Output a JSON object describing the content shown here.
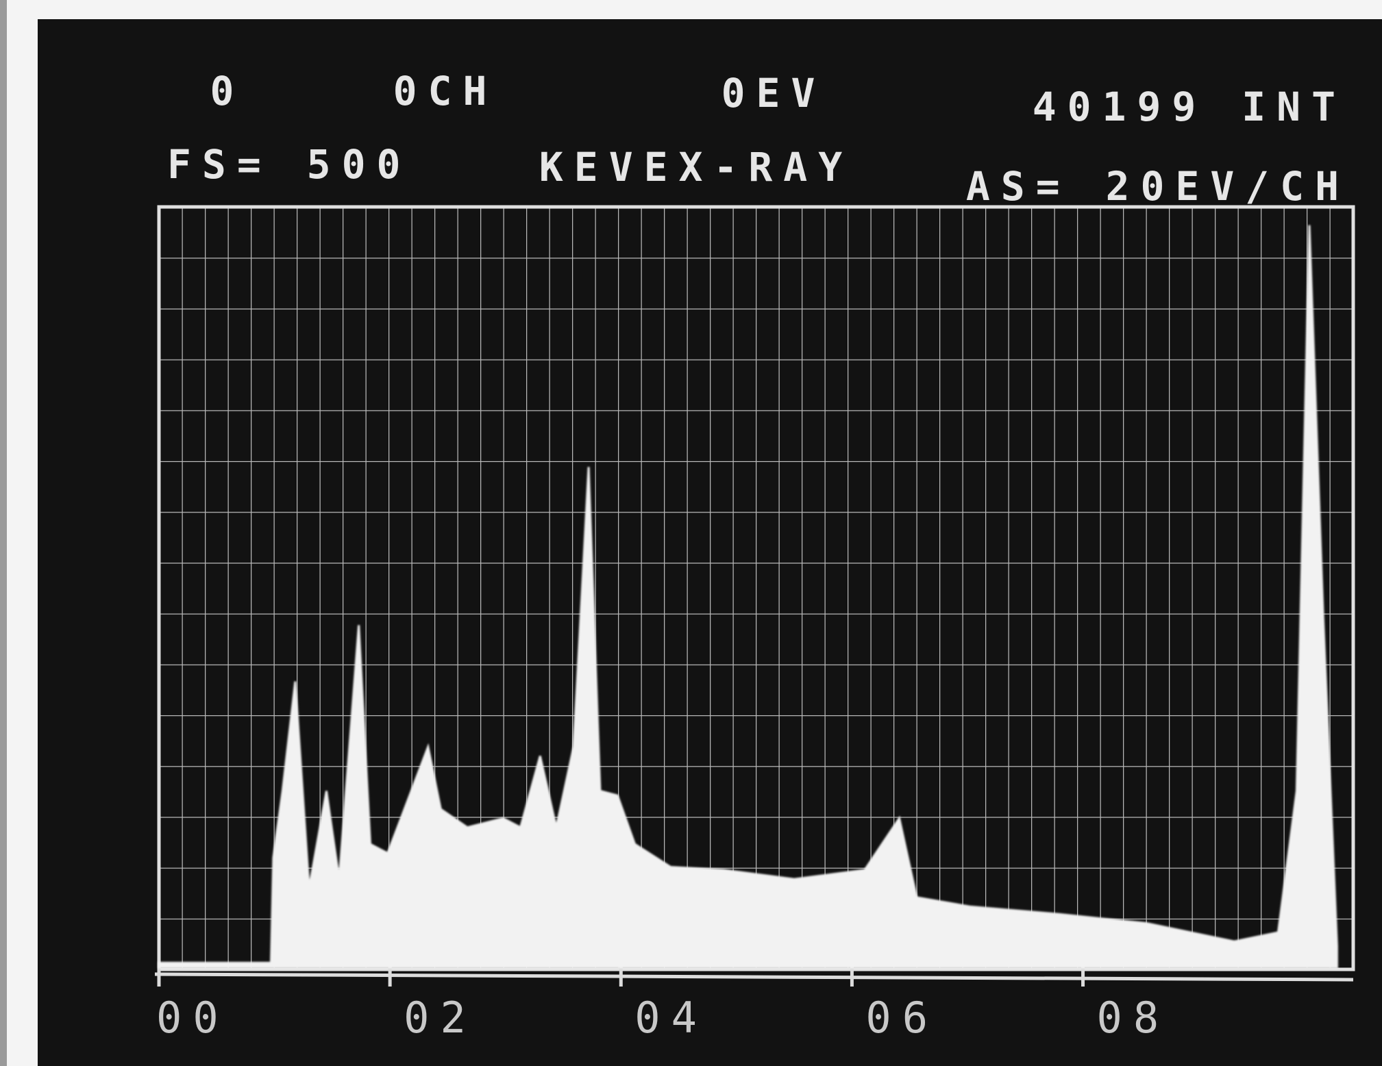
{
  "chart_data": {
    "type": "area",
    "readouts": [
      "0",
      "0CH",
      "0EV",
      "40199 INT"
    ],
    "status": [
      "FS= 500",
      "AS= 20EV/CH"
    ],
    "title": "KEVEX-RAY",
    "x": [
      0.0,
      0.97,
      0.99,
      1.07,
      1.18,
      1.3,
      1.45,
      1.56,
      1.73,
      1.83,
      1.98,
      2.33,
      2.44,
      2.67,
      2.98,
      3.13,
      3.3,
      3.44,
      3.59,
      3.72,
      3.82,
      3.97,
      4.12,
      4.43,
      4.89,
      5.5,
      6.11,
      6.41,
      6.56,
      7.02,
      7.79,
      8.55,
      9.31,
      9.69,
      9.85,
      9.96,
      10.08,
      10.2
    ],
    "values": [
      3,
      3,
      72,
      116,
      188,
      52,
      116,
      58,
      225,
      81,
      75,
      145,
      104,
      92,
      98,
      92,
      139,
      92,
      145,
      329,
      116,
      113,
      81,
      66,
      64,
      58,
      64,
      98,
      46,
      40,
      35,
      29,
      17,
      23,
      116,
      488,
      231,
      14
    ],
    "color": "#f2f2f2",
    "xlim": [
      0,
      10.34
    ],
    "ylim": [
      0,
      500
    ],
    "xticks": [
      {
        "value": 0,
        "label": "00"
      },
      {
        "value": 2,
        "label": "02"
      },
      {
        "value": 4,
        "label": "04"
      },
      {
        "value": 6,
        "label": "06"
      },
      {
        "value": 8,
        "label": "08"
      }
    ],
    "grid": true
  }
}
